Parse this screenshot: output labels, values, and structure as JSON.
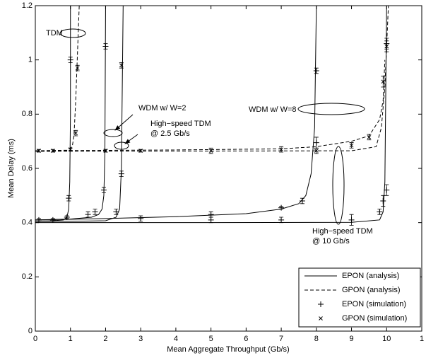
{
  "chart_data": {
    "type": "line",
    "xlabel": "Mean Aggregate Throughput (Gb/s)",
    "ylabel": "Mean Delay (ms)",
    "xlim": [
      0,
      11
    ],
    "xticks": [
      0,
      1,
      2,
      3,
      4,
      5,
      6,
      7,
      8,
      9,
      10,
      {
        "value": 11,
        "label": "1"
      }
    ],
    "ylim": [
      0,
      1.2
    ],
    "yticks": [
      0,
      0.2,
      0.4,
      0.6,
      0.8,
      1,
      1.2
    ],
    "grid": false,
    "legend": "lower right",
    "annotations": [
      {
        "lines": [
          "TDM"
        ]
      },
      {
        "lines": [
          "WDM w/ W=2"
        ]
      },
      {
        "lines": [
          "High−speed TDM",
          "@ 2.5 Gb/s"
        ]
      },
      {
        "lines": [
          "WDM w/ W=8"
        ]
      },
      {
        "lines": [
          "High−speed TDM",
          "@ 10 Gb/s"
        ]
      }
    ],
    "series": [
      {
        "name": "EPON (analysis)",
        "style": "solid",
        "color": "#000000",
        "curves": [
          {
            "x": [
              0,
              0.5,
              0.8,
              0.9,
              0.95,
              0.98,
              1.0,
              1.0
            ],
            "values": [
              0.405,
              0.407,
              0.41,
              0.42,
              0.45,
              0.55,
              0.8,
              1.2
            ]
          },
          {
            "x": [
              0,
              1,
              1.6,
              1.8,
              1.9,
              1.95,
              1.98,
              2.0
            ],
            "values": [
              0.41,
              0.413,
              0.42,
              0.43,
              0.45,
              0.5,
              0.65,
              1.2
            ]
          },
          {
            "x": [
              0,
              1,
              2,
              2.3,
              2.4,
              2.45,
              2.5
            ],
            "values": [
              0.405,
              0.405,
              0.407,
              0.42,
              0.45,
              0.6,
              1.2
            ]
          },
          {
            "x": [
              0,
              2,
              4,
              6,
              7,
              7.5,
              7.7,
              7.85,
              7.95,
              8.0
            ],
            "values": [
              0.41,
              0.415,
              0.422,
              0.433,
              0.45,
              0.47,
              0.5,
              0.58,
              0.75,
              1.2
            ]
          },
          {
            "x": [
              0,
              5,
              9,
              9.8,
              9.9,
              9.95,
              10.0
            ],
            "values": [
              0.4,
              0.4,
              0.401,
              0.41,
              0.44,
              0.55,
              1.2
            ]
          }
        ]
      },
      {
        "name": "GPON (analysis)",
        "style": "dashed",
        "color": "#000000",
        "curves": [
          {
            "x": [
              0,
              0.9,
              1.05,
              1.1,
              1.15,
              1.25
            ],
            "values": [
              0.665,
              0.667,
              0.68,
              0.72,
              0.85,
              1.2
            ]
          },
          {
            "x": [
              0,
              5,
              9,
              9.7,
              9.85,
              9.95,
              10.05
            ],
            "values": [
              0.663,
              0.664,
              0.665,
              0.68,
              0.75,
              0.9,
              1.2
            ]
          },
          {
            "x": [
              0,
              4,
              7,
              8,
              9,
              9.5,
              9.8,
              9.9,
              9.95
            ],
            "values": [
              0.665,
              0.668,
              0.672,
              0.68,
              0.7,
              0.72,
              0.78,
              0.85,
              1.0
            ]
          }
        ]
      },
      {
        "name": "EPON (simulation)",
        "marker": "plus",
        "color": "#000000",
        "x": [
          0.1,
          0.5,
          0.9,
          0.95,
          1.0,
          1.5,
          1.7,
          1.95,
          2.0,
          2.3,
          2.45,
          3,
          5,
          5,
          7,
          7,
          7.6,
          8,
          8,
          9,
          9.8,
          9.9,
          10,
          10
        ],
        "values": [
          0.41,
          0.41,
          0.42,
          0.49,
          1.0,
          0.43,
          0.44,
          0.52,
          1.05,
          0.44,
          0.58,
          0.415,
          0.43,
          0.41,
          0.455,
          0.41,
          0.48,
          0.695,
          0.96,
          0.41,
          0.44,
          0.48,
          0.52,
          1.06
        ],
        "errors": [
          0.005,
          0.005,
          0.005,
          0.01,
          0.01,
          0.01,
          0.01,
          0.01,
          0.01,
          0.01,
          0.01,
          0.01,
          0.01,
          0.01,
          0.005,
          0.01,
          0.01,
          0.02,
          0.01,
          0.02,
          0.01,
          0.02,
          0.02,
          0.02
        ]
      },
      {
        "name": "GPON (simulation)",
        "marker": "cross",
        "color": "#000000",
        "x": [
          0.1,
          0.5,
          1,
          1.15,
          1.2,
          2,
          2.45,
          3,
          5,
          7,
          8,
          9,
          9.5,
          9.9,
          10
        ],
        "values": [
          0.665,
          0.665,
          0.67,
          0.73,
          0.97,
          0.665,
          0.98,
          0.665,
          0.665,
          0.67,
          0.665,
          0.685,
          0.715,
          0.92,
          1.05
        ],
        "errors": [
          0.005,
          0.005,
          0.005,
          0.01,
          0.01,
          0.005,
          0.01,
          0.005,
          0.01,
          0.01,
          0.01,
          0.01,
          0.01,
          0.02,
          0.02
        ]
      }
    ]
  }
}
